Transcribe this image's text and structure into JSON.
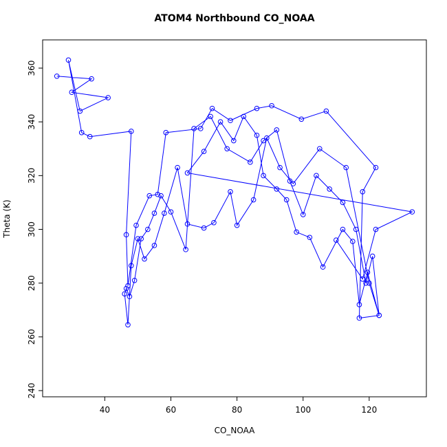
{
  "chart_data": {
    "type": "scatter",
    "title": "ATOM4 Northbound CO_NOAA",
    "x_label": "CO_NOAA",
    "y_label": "Theta (K)",
    "color": "#0000ff",
    "connect": true,
    "marker": "open-circle",
    "xlim": [
      21.2,
      137.3
    ],
    "ylim": [
      237.7,
      370.5
    ],
    "xticks": [
      40,
      60,
      80,
      100,
      120
    ],
    "yticks": [
      240,
      260,
      280,
      300,
      320,
      340,
      360
    ],
    "x": [
      25.5,
      36,
      30,
      41,
      32.5,
      29,
      33,
      35.5,
      48,
      46.5,
      47,
      49.5,
      53.5,
      56,
      58.5,
      69,
      72.5,
      78,
      86,
      90.5,
      99.5,
      107,
      122,
      118,
      117,
      123,
      120,
      113,
      105,
      97,
      93,
      89,
      85,
      80,
      78,
      73,
      70,
      65,
      62,
      58,
      55,
      52,
      50,
      48,
      47,
      46,
      46.5,
      47.5,
      49,
      51,
      53,
      55,
      57,
      60,
      64.5,
      67,
      72,
      77,
      84,
      88,
      92,
      96,
      100,
      104,
      108,
      112,
      116,
      119,
      121,
      123,
      119.5,
      117,
      115,
      112,
      106,
      102,
      98,
      95,
      92,
      88,
      86,
      82,
      79,
      75,
      70,
      65,
      133,
      122,
      118,
      110
    ],
    "y": [
      357,
      356,
      351,
      349,
      344,
      363,
      336,
      334.5,
      336.5,
      298,
      279,
      301.5,
      312.5,
      313,
      336,
      337.5,
      345,
      340.5,
      345,
      346,
      341,
      344,
      323,
      314,
      267,
      268,
      280,
      323,
      330,
      317,
      323,
      334,
      311,
      301.5,
      314,
      302.5,
      300.5,
      302,
      323,
      306,
      294,
      289,
      296.5,
      286.5,
      264.5,
      276,
      278,
      275,
      281,
      296.5,
      300,
      306,
      312.5,
      306.5,
      292.5,
      337.5,
      342,
      330,
      325,
      333,
      337,
      318,
      305.5,
      320,
      315,
      310,
      300,
      280,
      290,
      268,
      284,
      272,
      295.5,
      300,
      286,
      297,
      299,
      311,
      315,
      320,
      335,
      342,
      333,
      340,
      329,
      321,
      306.5,
      300,
      281.5,
      296
    ]
  }
}
